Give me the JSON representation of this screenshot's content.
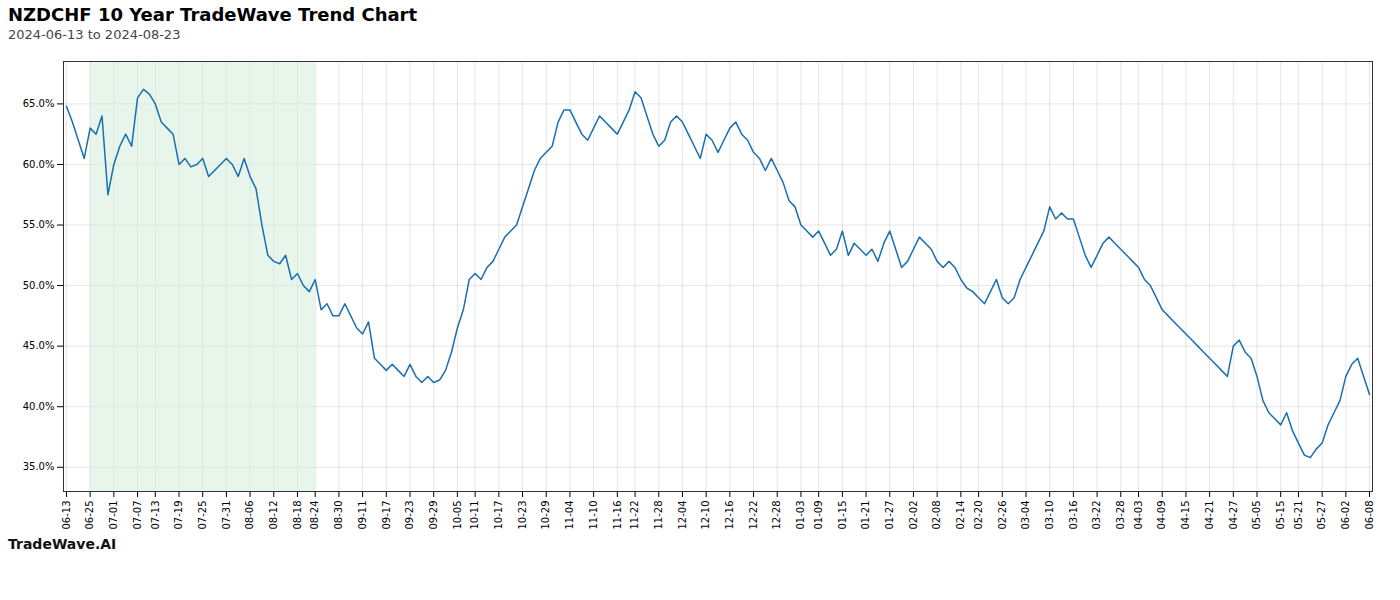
{
  "chart_data": {
    "type": "line",
    "title": "NZDCHF 10 Year TradeWave Trend Chart",
    "subtitle": "2024-06-13 to 2024-08-23",
    "annotations": [
      "TradeWave.AI"
    ],
    "color": "#1a6faf",
    "grid": true,
    "ylim": [
      33.0,
      68.5
    ],
    "yticks": [
      {
        "value": 35.0,
        "label": "35.0%"
      },
      {
        "value": 40.0,
        "label": "40.0%"
      },
      {
        "value": 45.0,
        "label": "45.0%"
      },
      {
        "value": 50.0,
        "label": "50.0%"
      },
      {
        "value": 55.0,
        "label": "55.0%"
      },
      {
        "value": 60.0,
        "label": "60.0%"
      },
      {
        "value": 65.0,
        "label": "65.0%"
      }
    ],
    "highlight": {
      "start": "06-25",
      "end": "08-24",
      "color": "#d4edda"
    },
    "categories": [
      "06-13",
      null,
      null,
      null,
      "06-25",
      null,
      null,
      null,
      "07-01",
      null,
      null,
      null,
      "07-07",
      null,
      null,
      "07-13",
      null,
      null,
      null,
      "07-19",
      null,
      null,
      null,
      "07-25",
      null,
      null,
      null,
      "07-31",
      null,
      null,
      null,
      "08-06",
      null,
      null,
      null,
      "08-12",
      null,
      null,
      null,
      "08-18",
      null,
      null,
      "08-24",
      null,
      null,
      null,
      "08-30",
      null,
      null,
      null,
      "09-11",
      null,
      null,
      null,
      "09-17",
      null,
      null,
      null,
      "09-23",
      null,
      null,
      null,
      "09-29",
      null,
      null,
      null,
      "10-05",
      null,
      null,
      "10-11",
      null,
      null,
      null,
      "10-17",
      null,
      null,
      null,
      "10-23",
      null,
      null,
      null,
      "10-29",
      null,
      null,
      null,
      "11-04",
      null,
      null,
      null,
      "11-10",
      null,
      null,
      null,
      "11-16",
      null,
      null,
      "11-22",
      null,
      null,
      null,
      "11-28",
      null,
      null,
      null,
      "12-04",
      null,
      null,
      null,
      "12-10",
      null,
      null,
      null,
      "12-16",
      null,
      null,
      null,
      "12-22",
      null,
      null,
      null,
      "12-28",
      null,
      null,
      null,
      "01-03",
      null,
      null,
      "01-09",
      null,
      null,
      null,
      "01-15",
      null,
      null,
      null,
      "01-21",
      null,
      null,
      null,
      "01-27",
      null,
      null,
      null,
      "02-02",
      null,
      null,
      null,
      "02-08",
      null,
      null,
      null,
      "02-14",
      null,
      null,
      "02-20",
      null,
      null,
      null,
      "02-26",
      null,
      null,
      null,
      "03-04",
      null,
      null,
      null,
      "03-10",
      null,
      null,
      null,
      "03-16",
      null,
      null,
      null,
      "03-22",
      null,
      null,
      null,
      "03-28",
      null,
      null,
      "04-03",
      null,
      null,
      null,
      "04-09",
      null,
      null,
      null,
      "04-15",
      null,
      null,
      null,
      "04-21",
      null,
      null,
      null,
      "04-27",
      null,
      null,
      null,
      "05-05",
      null,
      null,
      null,
      "05-15",
      null,
      null,
      "05-21",
      null,
      null,
      null,
      "05-27",
      null,
      null,
      null,
      "06-02",
      null,
      null,
      null,
      "06-08"
    ],
    "values": [
      64.8,
      63.5,
      62.0,
      60.5,
      63.0,
      62.5,
      64.0,
      57.5,
      60.0,
      61.5,
      62.5,
      61.5,
      65.5,
      66.2,
      65.8,
      65.0,
      63.5,
      63.0,
      62.5,
      60.0,
      60.5,
      59.8,
      60.0,
      60.5,
      59.0,
      59.5,
      60.0,
      60.5,
      60.0,
      59.0,
      60.5,
      59.0,
      58.0,
      55.0,
      52.5,
      52.0,
      51.8,
      52.5,
      50.5,
      51.0,
      50.0,
      49.5,
      50.5,
      48.0,
      48.5,
      47.5,
      47.5,
      48.5,
      47.5,
      46.5,
      46.0,
      47.0,
      44.0,
      43.5,
      43.0,
      43.5,
      43.0,
      42.5,
      43.5,
      42.5,
      42.0,
      42.5,
      42.0,
      42.2,
      43.0,
      44.5,
      46.5,
      48.0,
      50.5,
      51.0,
      50.5,
      51.5,
      52.0,
      53.0,
      54.0,
      54.5,
      55.0,
      56.5,
      58.0,
      59.5,
      60.5,
      61.0,
      61.5,
      63.5,
      64.5,
      64.5,
      63.5,
      62.5,
      62.0,
      63.0,
      64.0,
      63.5,
      63.0,
      62.5,
      63.5,
      64.5,
      66.0,
      65.5,
      64.0,
      62.5,
      61.5,
      62.0,
      63.5,
      64.0,
      63.5,
      62.5,
      61.5,
      60.5,
      62.5,
      62.0,
      61.0,
      62.0,
      63.0,
      63.5,
      62.5,
      62.0,
      61.0,
      60.5,
      59.5,
      60.5,
      59.5,
      58.5,
      57.0,
      56.5,
      55.0,
      54.5,
      54.0,
      54.5,
      53.5,
      52.5,
      53.0,
      54.5,
      52.5,
      53.5,
      53.0,
      52.5,
      53.0,
      52.0,
      53.5,
      54.5,
      53.0,
      51.5,
      52.0,
      53.0,
      54.0,
      53.5,
      53.0,
      52.0,
      51.5,
      52.0,
      51.5,
      50.5,
      49.8,
      49.5,
      49.0,
      48.5,
      49.5,
      50.5,
      49.0,
      48.5,
      49.0,
      50.5,
      51.5,
      52.5,
      53.5,
      54.5,
      56.5,
      55.5,
      56.0,
      55.5,
      55.5,
      54.0,
      52.5,
      51.5,
      52.5,
      53.5,
      54.0,
      53.5,
      53.0,
      52.5,
      52.0,
      51.5,
      50.5,
      50.0,
      49.0,
      48.0,
      47.5,
      47.0,
      46.5,
      46.0,
      45.5,
      45.0,
      44.5,
      44.0,
      43.5,
      43.0,
      42.5,
      45.0,
      45.5,
      44.5,
      44.0,
      42.5,
      40.5,
      39.5,
      39.0,
      38.5,
      39.5,
      38.0,
      37.0,
      36.0,
      35.8,
      36.5,
      37.0,
      38.5,
      39.5,
      40.5,
      42.5,
      43.5,
      44.0,
      42.5,
      41.0
    ]
  }
}
